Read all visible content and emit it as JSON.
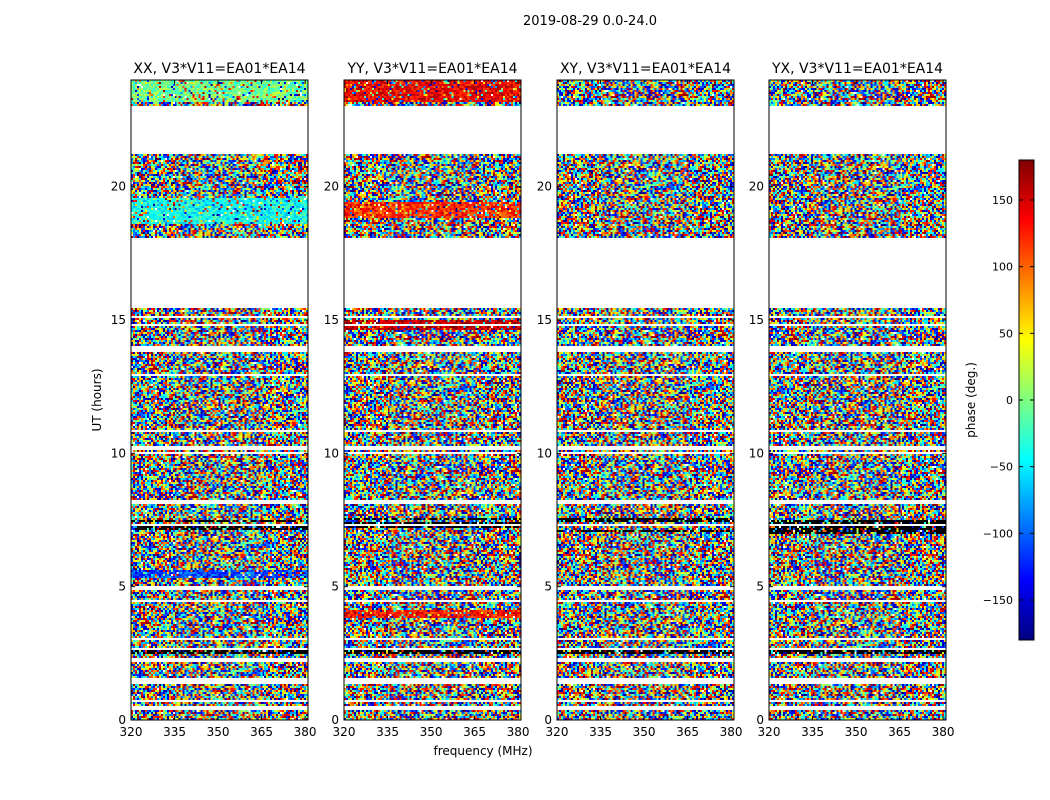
{
  "chart_data": {
    "type": "heatmap",
    "suptitle": "2019-08-29 0.0-24.0",
    "xlabel": "frequency (MHz)",
    "ylabel": "UT (hours)",
    "xlim": [
      320,
      381
    ],
    "ylim": [
      0,
      24
    ],
    "xticks": [
      320,
      335,
      350,
      365,
      380
    ],
    "yticks": [
      0,
      5,
      10,
      15,
      20
    ],
    "colorbar": {
      "label": "phase (deg.)",
      "range": [
        -180,
        180
      ],
      "ticks": [
        -150,
        -100,
        -50,
        0,
        50,
        100,
        150
      ],
      "tick_labels": [
        "−150",
        "−100",
        "−50",
        "0",
        "50",
        "100",
        "150"
      ],
      "colormap": "jet",
      "colors": [
        "#00007f",
        "#0000ff",
        "#007fff",
        "#00ffff",
        "#7fff7f",
        "#ffff00",
        "#ff7f00",
        "#ff0000",
        "#7f0000"
      ]
    },
    "flagged_ut_ranges": [
      [
        0.35,
        0.55
      ],
      [
        1.35,
        1.6
      ],
      [
        2.2,
        2.3
      ],
      [
        4.9,
        5.05
      ],
      [
        8.1,
        8.25
      ],
      [
        10.15,
        10.3
      ],
      [
        13.9,
        14.05
      ],
      [
        15.45,
        18.1
      ],
      [
        21.2,
        23.0
      ]
    ],
    "panels": [
      {
        "title": "XX, V3*V11=EA01*EA14",
        "bands": [
          {
            "ut": [
              23.2,
              24.0
            ],
            "phase_deg": -5
          },
          {
            "ut": [
              18.6,
              19.6
            ],
            "phase_deg": -40
          },
          {
            "ut": [
              5.3,
              5.6
            ],
            "phase_deg": -110
          }
        ]
      },
      {
        "title": "YY, V3*V11=EA01*EA14",
        "bands": [
          {
            "ut": [
              23.2,
              24.0
            ],
            "phase_deg": 140
          },
          {
            "ut": [
              18.8,
              19.4
            ],
            "phase_deg": 120
          },
          {
            "ut": [
              14.6,
              15.0
            ],
            "phase_deg": 160
          },
          {
            "ut": [
              3.8,
              4.1
            ],
            "phase_deg": 130
          }
        ]
      },
      {
        "title": "XY, V3*V11=EA01*EA14",
        "bands": []
      },
      {
        "title": "YX, V3*V11=EA01*EA14",
        "bands": []
      }
    ]
  }
}
